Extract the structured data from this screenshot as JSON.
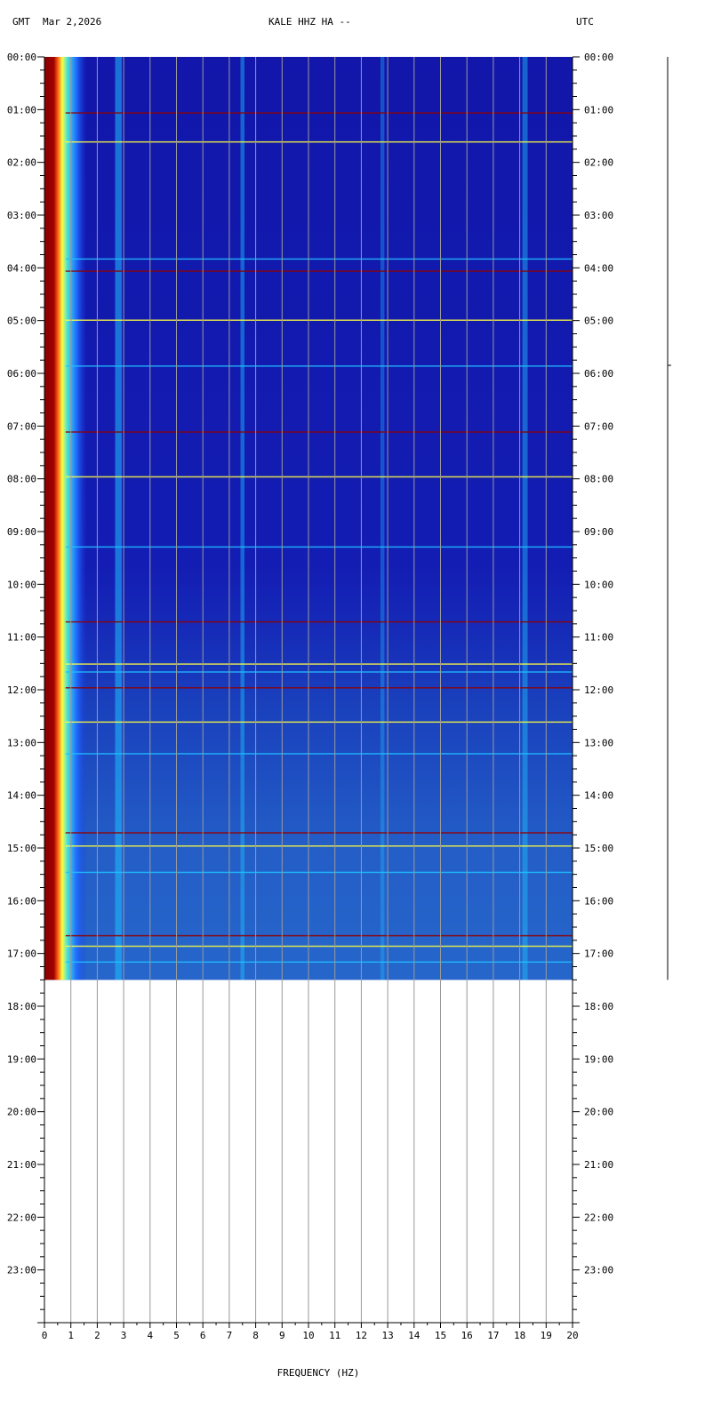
{
  "header": {
    "left_tz": "GMT",
    "date": "Mar 2,2026",
    "station": "KALE HHZ HA --",
    "right_tz": "UTC"
  },
  "chart_data": {
    "type": "heatmap",
    "title": "KALE HHZ HA --",
    "xlabel": "FREQUENCY (HZ)",
    "ylabel": "",
    "xlim": [
      0,
      20
    ],
    "ylim_hours": [
      0,
      24
    ],
    "data_end_hour": 17.5,
    "x_ticks": [
      "0",
      "1",
      "2",
      "3",
      "4",
      "5",
      "6",
      "7",
      "8",
      "9",
      "10",
      "11",
      "12",
      "13",
      "14",
      "15",
      "16",
      "17",
      "18",
      "19",
      "20"
    ],
    "y_ticks": [
      "00:00",
      "01:00",
      "02:00",
      "03:00",
      "04:00",
      "05:00",
      "06:00",
      "07:00",
      "08:00",
      "09:00",
      "10:00",
      "11:00",
      "12:00",
      "13:00",
      "14:00",
      "15:00",
      "16:00",
      "17:00",
      "18:00",
      "19:00",
      "20:00",
      "21:00",
      "22:00",
      "23:00"
    ],
    "colors": {
      "background": "#1010a0",
      "low": "#1c3ae0",
      "mid": "#20c0ff",
      "high": "#ffff40",
      "peak": "#900000",
      "grid": "#9a9a9a"
    },
    "horizontal_event_hours": [
      1.05,
      1.6,
      3.82,
      4.05,
      4.98,
      5.85,
      7.1,
      7.95,
      9.28,
      10.7,
      11.5,
      11.65,
      11.95,
      12.6,
      13.2,
      14.7,
      14.95,
      15.45,
      16.65,
      16.85,
      17.15
    ]
  }
}
